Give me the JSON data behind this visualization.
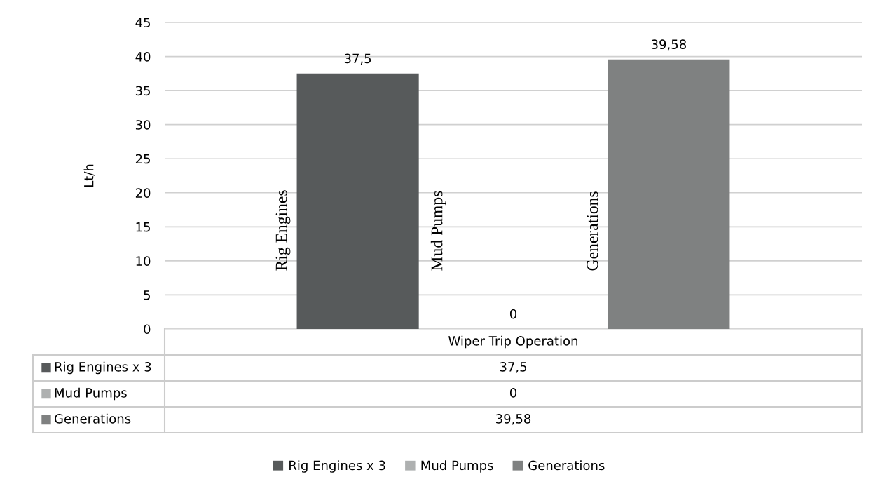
{
  "chart_data": {
    "type": "bar",
    "ylabel": "Lt/h",
    "categories": [
      "Wiper Trip Operation"
    ],
    "series": [
      {
        "name": "Rig Engines x 3",
        "color": "#575a5b",
        "values": [
          37.5
        ],
        "value_labels": [
          "37,5"
        ]
      },
      {
        "name": "Mud Pumps",
        "color": "#aeb0b0",
        "values": [
          0
        ],
        "value_labels": [
          "0"
        ]
      },
      {
        "name": "Generations",
        "color": "#7f8181",
        "values": [
          39.58
        ],
        "value_labels": [
          "39,58"
        ]
      }
    ],
    "annotations": [
      "Rig Engines",
      "Mud Pumps",
      "Generations"
    ],
    "ylim": [
      0,
      45
    ],
    "yticks": [
      0,
      5,
      10,
      15,
      20,
      25,
      30,
      35,
      40,
      45
    ],
    "grid": "y",
    "legend": "bottom"
  }
}
